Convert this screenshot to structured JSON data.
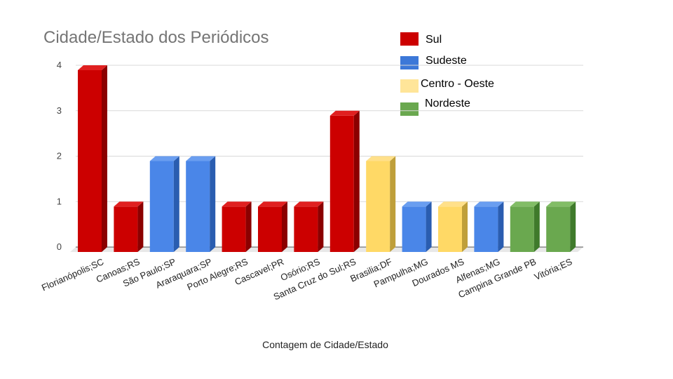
{
  "chart_data": {
    "type": "bar",
    "title": "Cidade/Estado dos Periódicos",
    "xlabel": "Contagem de Cidade/Estado",
    "ylabel": "",
    "ylim": [
      0,
      4
    ],
    "yticks": [
      "0",
      "1",
      "2",
      "3",
      "4"
    ],
    "grid": true,
    "legend_position": "top-right",
    "categories": [
      "Florianópolis;SC",
      "Canoas;RS",
      "São Paulo;SP",
      "Araraquara;SP",
      "Porto Alegre;RS",
      "Cascavel;PR",
      "Osório;RS",
      "Santa Cruz do Sul;RS",
      "Brasilia;DF",
      "Pampulha;MG",
      "Dourados MS",
      "Alfenas;MG",
      "Campina Grande PB",
      "Vitória;ES"
    ],
    "values": [
      4,
      1,
      2,
      2,
      1,
      1,
      1,
      3,
      2,
      1,
      1,
      1,
      1,
      1
    ],
    "regions": [
      "Sul",
      "Sul",
      "Sudeste",
      "Sudeste",
      "Sul",
      "Sul",
      "Sul",
      "Sul",
      "Centro - Oeste",
      "Sudeste",
      "Centro - Oeste",
      "Sudeste",
      "Nordeste",
      "Nordeste"
    ],
    "legend": [
      {
        "name": "Sul",
        "color": "#cc0000"
      },
      {
        "name": "Sudeste",
        "color": "#3c78d8"
      },
      {
        "name": "Centro - Oeste",
        "color": "#ffe599"
      },
      {
        "name": "Nordeste",
        "color": "#6aa84f"
      }
    ],
    "bar_colors": {
      "Sul": {
        "front": "#cc0000",
        "side": "#8b0000",
        "top": "#e02020"
      },
      "Sudeste": {
        "front": "#4a86e8",
        "side": "#2a5db0",
        "top": "#6a9ef0"
      },
      "Centro - Oeste": {
        "front": "#ffd966",
        "side": "#bf9f3a",
        "top": "#ffe08a"
      },
      "Nordeste": {
        "front": "#6aa84f",
        "side": "#3f7a2b",
        "top": "#82bd66"
      }
    }
  }
}
